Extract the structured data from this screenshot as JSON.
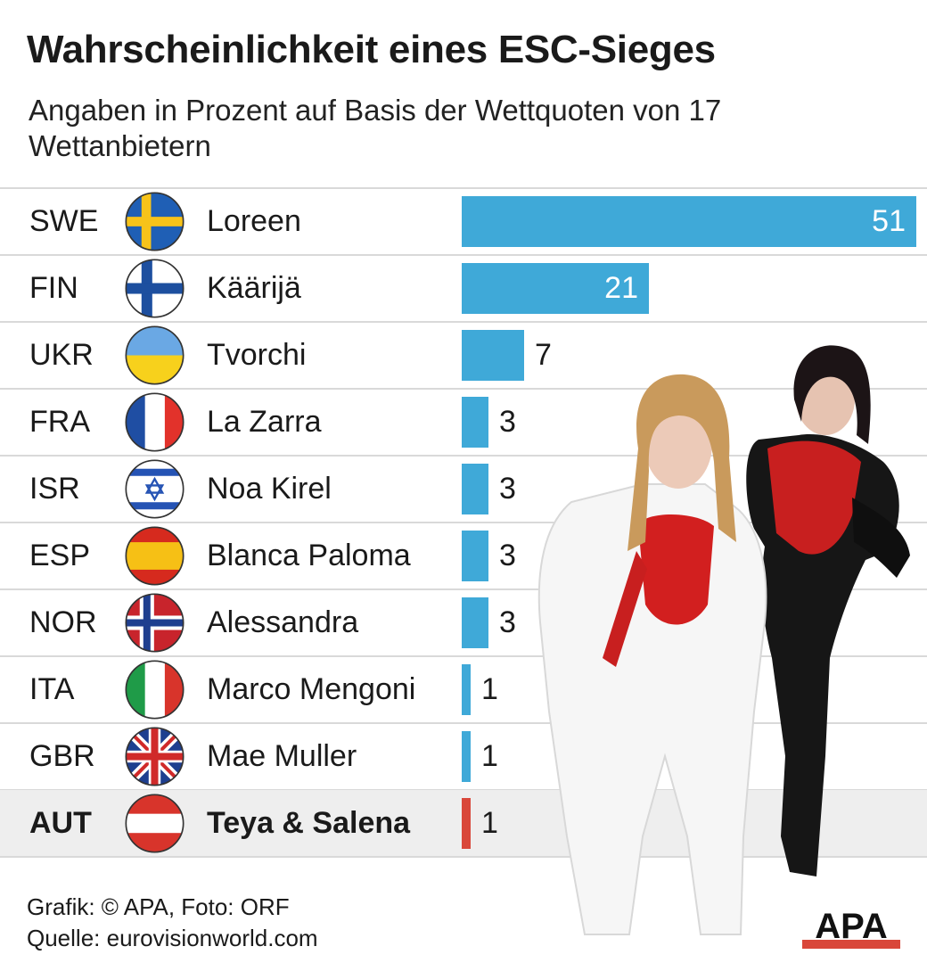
{
  "title": "Wahrscheinlichkeit eines ESC-Sieges",
  "subtitle": "Angaben in Prozent auf Basis der Wettquoten von 17 Wettanbietern",
  "credits": {
    "line1": "Grafik: © APA, Foto: ORF",
    "line2": "Quelle: eurovisionworld.com"
  },
  "logo_text": "APA",
  "colors": {
    "bar": "#3fa9d8",
    "bar_highlight": "#d9473a",
    "rule": "#d9d9d9",
    "highlight_row": "#eeeeee"
  },
  "chart_data": {
    "type": "bar",
    "orientation": "horizontal",
    "title": "Wahrscheinlichkeit eines ESC-Sieges",
    "subtitle": "Angaben in Prozent auf Basis der Wettquoten von 17 Wettanbietern",
    "xlim": [
      0,
      51
    ],
    "grid": false,
    "categories": [
      "SWE",
      "FIN",
      "UKR",
      "FRA",
      "ISR",
      "ESP",
      "NOR",
      "ITA",
      "GBR",
      "AUT"
    ],
    "rows": [
      {
        "code": "SWE",
        "name": "Loreen",
        "value": 51,
        "flag": "sweden-flag"
      },
      {
        "code": "FIN",
        "name": "Käärijä",
        "value": 21,
        "flag": "finland-flag"
      },
      {
        "code": "UKR",
        "name": "Tvorchi",
        "value": 7,
        "flag": "ukraine-flag"
      },
      {
        "code": "FRA",
        "name": "La Zarra",
        "value": 3,
        "flag": "france-flag"
      },
      {
        "code": "ISR",
        "name": "Noa Kirel",
        "value": 3,
        "flag": "israel-flag"
      },
      {
        "code": "ESP",
        "name": "Blanca Paloma",
        "value": 3,
        "flag": "spain-flag"
      },
      {
        "code": "NOR",
        "name": "Alessandra",
        "value": 3,
        "flag": "norway-flag"
      },
      {
        "code": "ITA",
        "name": "Marco Mengoni",
        "value": 1,
        "flag": "italy-flag"
      },
      {
        "code": "GBR",
        "name": "Mae Muller",
        "value": 1,
        "flag": "uk-flag"
      },
      {
        "code": "AUT",
        "name": "Teya & Salena",
        "value": 1,
        "flag": "austria-flag",
        "highlight": true
      }
    ]
  }
}
